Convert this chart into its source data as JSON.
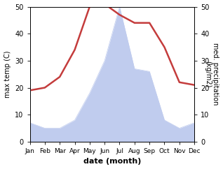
{
  "months": [
    "Jan",
    "Feb",
    "Mar",
    "Apr",
    "May",
    "Jun",
    "Jul",
    "Aug",
    "Sep",
    "Oct",
    "Nov",
    "Dec"
  ],
  "x": [
    1,
    2,
    3,
    4,
    5,
    6,
    7,
    8,
    9,
    10,
    11,
    12
  ],
  "temperature": [
    19,
    20,
    24,
    34,
    50,
    51,
    47,
    44,
    44,
    35,
    22,
    21
  ],
  "precipitation": [
    7,
    5,
    5,
    8,
    18,
    30,
    50,
    27,
    26,
    8,
    5,
    7
  ],
  "temp_color": "#c43c3c",
  "precip_color": "#c0ccee",
  "ylabel_left": "max temp (C)",
  "ylabel_right": "med. precipitation\n(kg/m2)",
  "xlabel": "date (month)",
  "ylim_left": [
    0,
    50
  ],
  "ylim_right": [
    0,
    50
  ],
  "yticks": [
    0,
    10,
    20,
    30,
    40,
    50
  ],
  "line_width": 1.8,
  "bg_color": "#ffffff"
}
